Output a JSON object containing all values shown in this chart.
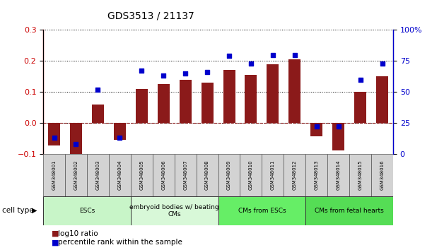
{
  "title": "GDS3513 / 21137",
  "samples": [
    "GSM348001",
    "GSM348002",
    "GSM348003",
    "GSM348004",
    "GSM348005",
    "GSM348006",
    "GSM348007",
    "GSM348008",
    "GSM348009",
    "GSM348010",
    "GSM348011",
    "GSM348012",
    "GSM348013",
    "GSM348014",
    "GSM348015",
    "GSM348016"
  ],
  "log10_ratio": [
    -0.073,
    -0.115,
    0.058,
    -0.055,
    0.11,
    0.125,
    0.14,
    0.13,
    0.17,
    0.155,
    0.19,
    0.205,
    -0.043,
    -0.09,
    0.1,
    0.15
  ],
  "percentile_rank": [
    13,
    8,
    52,
    13,
    67,
    63,
    65,
    66,
    79,
    73,
    80,
    80,
    22,
    22,
    60,
    73
  ],
  "bar_color": "#8B1A1A",
  "dot_color": "#0000CC",
  "ylim_left": [
    -0.1,
    0.3
  ],
  "ylim_right": [
    0,
    100
  ],
  "yticks_left": [
    -0.1,
    0.0,
    0.1,
    0.2,
    0.3
  ],
  "yticks_right": [
    0,
    25,
    50,
    75,
    100
  ],
  "cell_types": [
    {
      "label": "ESCs",
      "start": 0,
      "end": 3,
      "color": "#c8f5c8"
    },
    {
      "label": "embryoid bodies w/ beating\nCMs",
      "start": 4,
      "end": 7,
      "color": "#d8f8d8"
    },
    {
      "label": "CMs from ESCs",
      "start": 8,
      "end": 11,
      "color": "#66ee66"
    },
    {
      "label": "CMs from fetal hearts",
      "start": 12,
      "end": 15,
      "color": "#55dd55"
    }
  ],
  "legend_bar_label": "log10 ratio",
  "legend_dot_label": "percentile rank within the sample",
  "zero_line_color": "#8B1A1A",
  "plot_bg_color": "#ffffff"
}
